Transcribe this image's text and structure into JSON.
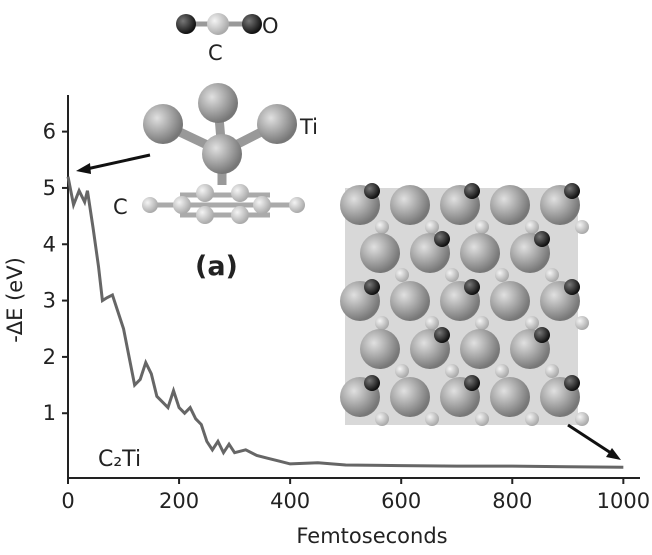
{
  "chart_data": {
    "type": "line",
    "x_label": "Femtoseconds",
    "y_label": "-ΔE (eV)",
    "annotations": {
      "molecule_o": "O",
      "molecule_c": "C",
      "cluster_ti": "Ti",
      "ring_c": "C",
      "panel": "(a)",
      "curve_label": "C₂Ti"
    },
    "xlim": [
      0,
      1030
    ],
    "ylim": [
      -0.15,
      6.65
    ],
    "xticks": [
      0,
      200,
      400,
      600,
      800,
      1000
    ],
    "yticks": [
      1,
      2,
      3,
      4,
      5,
      6
    ],
    "grid": false,
    "series": [
      {
        "name": "C₂Ti",
        "color": "#666666",
        "x": [
          0,
          10,
          20,
          30,
          35,
          45,
          55,
          62,
          70,
          80,
          90,
          100,
          110,
          120,
          130,
          140,
          150,
          160,
          170,
          180,
          190,
          200,
          210,
          220,
          230,
          240,
          250,
          260,
          270,
          280,
          290,
          300,
          320,
          340,
          360,
          380,
          400,
          450,
          500,
          600,
          700,
          800,
          900,
          1000
        ],
        "values": [
          5.2,
          4.7,
          4.95,
          4.75,
          4.95,
          4.3,
          3.6,
          3.0,
          3.05,
          3.1,
          2.8,
          2.5,
          2.0,
          1.5,
          1.6,
          1.9,
          1.7,
          1.3,
          1.2,
          1.1,
          1.4,
          1.1,
          1.0,
          1.1,
          0.9,
          0.8,
          0.5,
          0.35,
          0.5,
          0.3,
          0.45,
          0.3,
          0.35,
          0.25,
          0.2,
          0.15,
          0.1,
          0.12,
          0.08,
          0.07,
          0.06,
          0.06,
          0.05,
          0.04
        ]
      }
    ]
  }
}
